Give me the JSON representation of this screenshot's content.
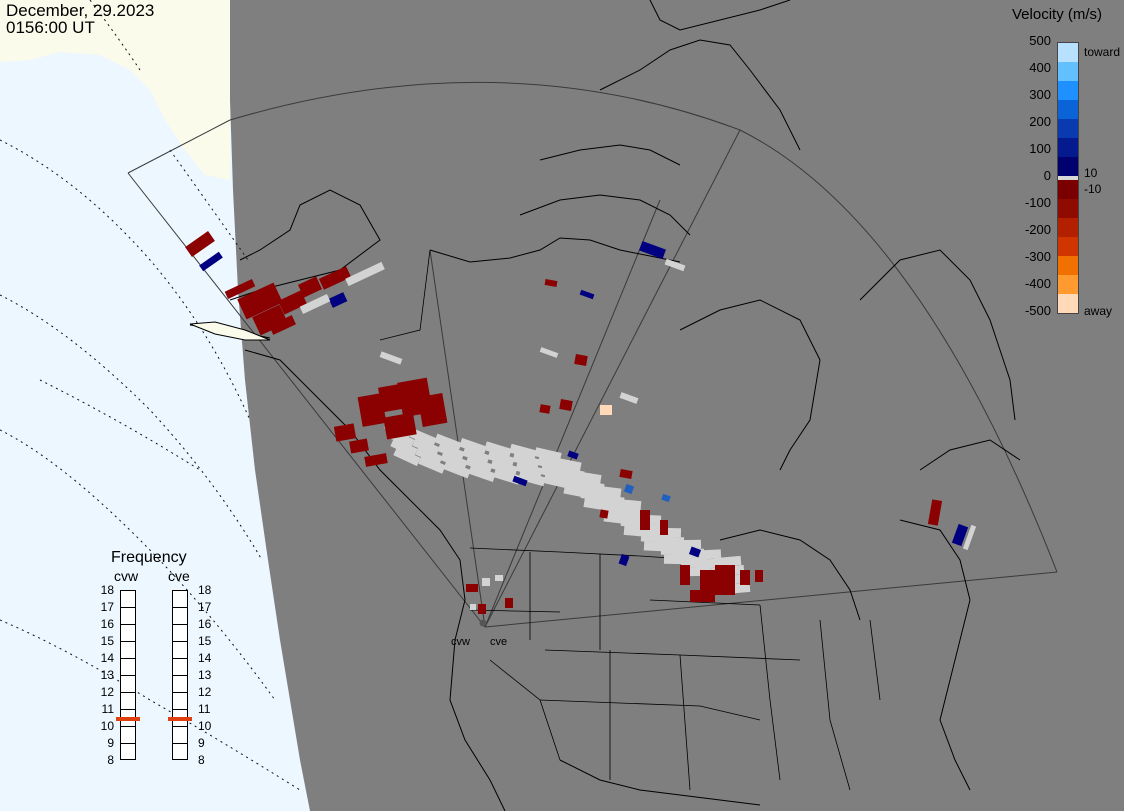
{
  "header": {
    "date": "December, 29.2023",
    "time": "0156:00 UT"
  },
  "colorbar": {
    "title": "Velocity (m/s)",
    "ticks": [
      "500",
      "400",
      "300",
      "200",
      "100",
      "0",
      "-100",
      "-200",
      "-300",
      "-400",
      "-500"
    ],
    "side_labels": [
      "10",
      "-10"
    ],
    "toward_label": "toward",
    "away_label": "away",
    "toward_colors": [
      "#b8e0ff",
      "#63c0ff",
      "#1e90ff",
      "#0a64d8",
      "#0a3ab0",
      "#061a90",
      "#00006e"
    ],
    "away_colors": [
      "#7a0000",
      "#8f0b00",
      "#b22000",
      "#d03500",
      "#f07000",
      "#ff9a30",
      "#ffd9b8"
    ]
  },
  "frequency_panel": {
    "title": "Frequency",
    "radars": [
      {
        "name": "cvw",
        "frequency_mhz": 11
      },
      {
        "name": "cve",
        "frequency_mhz": 11
      }
    ],
    "scale": [
      "18",
      "17",
      "16",
      "15",
      "14",
      "13",
      "12",
      "11",
      "10",
      "9",
      "8"
    ]
  },
  "sites": [
    {
      "name": "cvw"
    },
    {
      "name": "cve"
    }
  ],
  "colors": {
    "land": "#7f7f7f",
    "daylight_ocean": "#ecf7ff",
    "daylight_land": "#fbfbec",
    "ground_scatter": "#d3d3d3",
    "marker": "#e04010"
  }
}
